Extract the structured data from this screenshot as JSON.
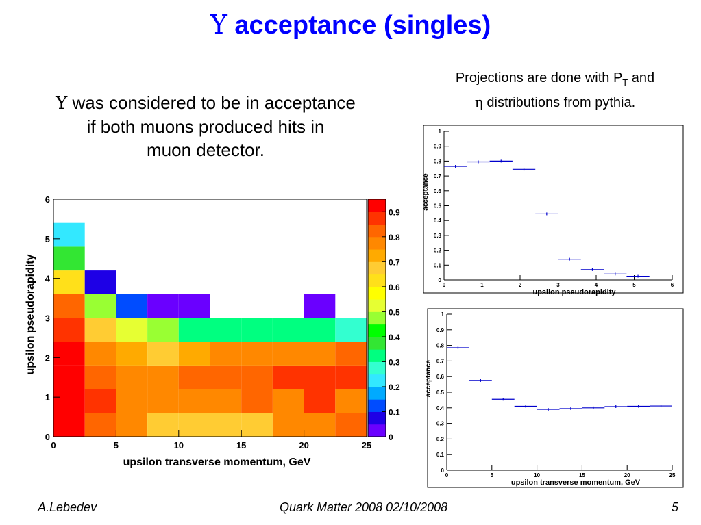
{
  "slide": {
    "title_symbol": "Υ",
    "title_text": " acceptance (singles)",
    "left_symbol": "Υ",
    "left_line1": " was considered to be in acceptance",
    "left_line2": "if both muons produced hits in",
    "left_line3": "muon detector.",
    "right_line1_a": "Projections are done with P",
    "right_line1_sub": "T",
    "right_line1_b": " and",
    "right_line2_symbol": "η",
    "right_line2_b": " distributions from pythia.",
    "footer_author": "A.Lebedev",
    "footer_event": "Quark Matter 2008   02/10/2008",
    "footer_page": "5"
  },
  "chart_data": [
    {
      "type": "heatmap",
      "xlabel": "upsilon transverse momentum, GeV",
      "ylabel": "upsilon pseudorapidity",
      "xlim": [
        0,
        25
      ],
      "ylim": [
        0,
        6
      ],
      "xticks": [
        "0",
        "5",
        "10",
        "15",
        "20",
        "25"
      ],
      "yticks": [
        "0",
        "1",
        "2",
        "3",
        "4",
        "5",
        "6"
      ],
      "x_edges": [
        0,
        2.5,
        5,
        7.5,
        10,
        12.5,
        15,
        17.5,
        20,
        22.5,
        25
      ],
      "y_edges": [
        0,
        0.6,
        1.2,
        1.8,
        2.4,
        3.0,
        3.6,
        4.2,
        4.8,
        5.4,
        6.0
      ],
      "values": [
        [
          0.95,
          0.88,
          0.8,
          0.72,
          0.72,
          0.72,
          0.72,
          0.8,
          0.8,
          0.85
        ],
        [
          0.95,
          0.9,
          0.8,
          0.8,
          0.8,
          0.8,
          0.85,
          0.8,
          0.9,
          0.8
        ],
        [
          0.95,
          0.85,
          0.8,
          0.8,
          0.85,
          0.85,
          0.85,
          0.9,
          0.9,
          0.9
        ],
        [
          0.95,
          0.8,
          0.75,
          0.72,
          0.75,
          0.8,
          0.8,
          0.8,
          0.8,
          0.85
        ],
        [
          0.92,
          0.7,
          0.55,
          0.52,
          0.35,
          0.35,
          0.35,
          0.32,
          0.35,
          0.3
        ],
        [
          0.85,
          0.52,
          0.15,
          0.05,
          0.05,
          null,
          null,
          null,
          0.05,
          null
        ],
        [
          0.65,
          0.1,
          null,
          null,
          null,
          null,
          null,
          null,
          null,
          null
        ],
        [
          0.38,
          null,
          null,
          null,
          null,
          null,
          null,
          null,
          null,
          null
        ],
        [
          0.25,
          null,
          null,
          null,
          null,
          null,
          null,
          null,
          null,
          null
        ],
        [
          null,
          null,
          null,
          null,
          null,
          null,
          null,
          null,
          null,
          null
        ]
      ],
      "colorbar_ticks": [
        "0",
        "0.1",
        "0.2",
        "0.3",
        "0.4",
        "0.5",
        "0.6",
        "0.7",
        "0.8",
        "0.9"
      ],
      "colorbar_colors": [
        "#6a00ff",
        "#1e00e6",
        "#004cff",
        "#00aaff",
        "#33e8ff",
        "#33ffd0",
        "#00ff80",
        "#33e633",
        "#00ff00",
        "#99ff33",
        "#e6ff33",
        "#ffff00",
        "#ffe01a",
        "#ffcc33",
        "#ffaa00",
        "#ff8800",
        "#ff6600",
        "#ff3300",
        "#ff0000"
      ]
    },
    {
      "type": "scatter",
      "xlabel": "upsilon pseudorapidity",
      "ylabel": "acceptance",
      "xlim": [
        0,
        6
      ],
      "ylim": [
        0,
        1
      ],
      "xticks": [
        "0",
        "1",
        "2",
        "3",
        "4",
        "5",
        "6"
      ],
      "yticks": [
        "0",
        "0.1",
        "0.2",
        "0.3",
        "0.4",
        "0.5",
        "0.6",
        "0.7",
        "0.8",
        "0.9",
        "1"
      ],
      "points": [
        {
          "x": 0.3,
          "xerr": 0.3,
          "y": 0.765
        },
        {
          "x": 0.9,
          "xerr": 0.3,
          "y": 0.795
        },
        {
          "x": 1.5,
          "xerr": 0.3,
          "y": 0.8
        },
        {
          "x": 2.1,
          "xerr": 0.3,
          "y": 0.745
        },
        {
          "x": 2.7,
          "xerr": 0.3,
          "y": 0.445
        },
        {
          "x": 3.3,
          "xerr": 0.3,
          "y": 0.14
        },
        {
          "x": 3.9,
          "xerr": 0.3,
          "y": 0.07
        },
        {
          "x": 4.5,
          "xerr": 0.3,
          "y": 0.04
        },
        {
          "x": 5.1,
          "xerr": 0.3,
          "y": 0.025
        }
      ]
    },
    {
      "type": "scatter",
      "xlabel": "upsilon transverse momentum, GeV",
      "ylabel": "acceptance",
      "xlim": [
        0,
        25
      ],
      "ylim": [
        0,
        1
      ],
      "xticks": [
        "0",
        "5",
        "10",
        "15",
        "20",
        "25"
      ],
      "yticks": [
        "0",
        "0.1",
        "0.2",
        "0.3",
        "0.4",
        "0.5",
        "0.6",
        "0.7",
        "0.8",
        "0.9",
        "1"
      ],
      "points": [
        {
          "x": 1.25,
          "xerr": 1.25,
          "y": 0.785
        },
        {
          "x": 3.75,
          "xerr": 1.25,
          "y": 0.575
        },
        {
          "x": 6.25,
          "xerr": 1.25,
          "y": 0.455
        },
        {
          "x": 8.75,
          "xerr": 1.25,
          "y": 0.41
        },
        {
          "x": 11.25,
          "xerr": 1.25,
          "y": 0.39
        },
        {
          "x": 13.75,
          "xerr": 1.25,
          "y": 0.395
        },
        {
          "x": 16.25,
          "xerr": 1.25,
          "y": 0.4
        },
        {
          "x": 18.75,
          "xerr": 1.25,
          "y": 0.408
        },
        {
          "x": 21.25,
          "xerr": 1.25,
          "y": 0.41
        },
        {
          "x": 23.75,
          "xerr": 1.25,
          "y": 0.412
        }
      ]
    }
  ]
}
